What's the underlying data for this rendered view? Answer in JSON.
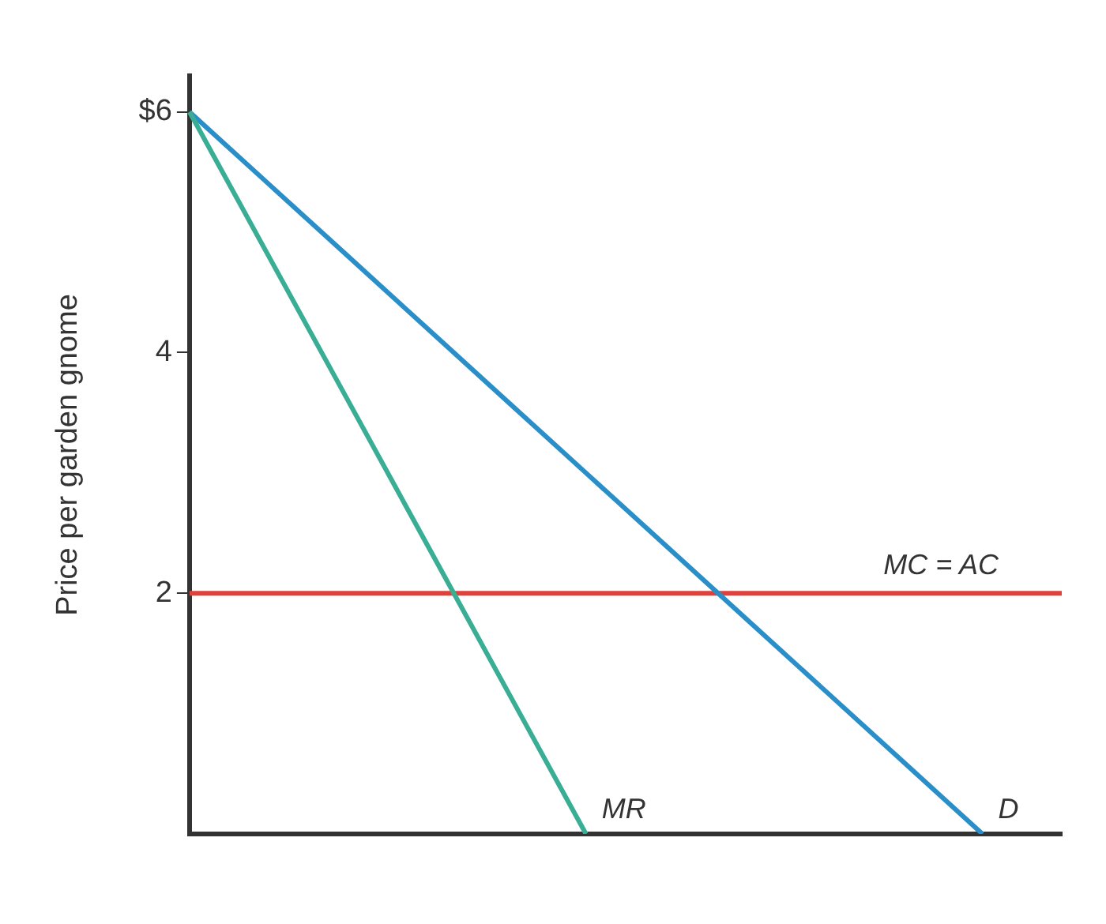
{
  "chart_data": {
    "type": "line",
    "ylabel": "Price per garden gnome",
    "categories": [
      null,
      null,
      null,
      null,
      null,
      null,
      null,
      null,
      null,
      null,
      null,
      null
    ],
    "ylim": [
      0,
      6.3
    ],
    "yticks": [
      2,
      4,
      {
        "value": 6,
        "label": "$6"
      }
    ],
    "tick_labels": "y",
    "grid": false,
    "legend": false,
    "marker": "none",
    "line_style": "solid",
    "series": [
      {
        "name": "MR",
        "color": "#3aae95",
        "values": [
          6,
          4.8,
          3.6,
          2.4,
          1.2,
          0,
          null,
          null,
          null,
          null,
          null,
          null
        ]
      },
      {
        "name": "D",
        "color": "#2a8fc9",
        "values": [
          6,
          5.4,
          4.8,
          4.2,
          3.6,
          3,
          2.4,
          1.8,
          1.2,
          0.6,
          0,
          null
        ]
      },
      {
        "name": "MC = AC",
        "color": "#e0413a",
        "values": [
          2,
          2,
          2,
          2,
          2,
          2,
          2,
          2,
          2,
          2,
          2,
          2
        ]
      }
    ]
  }
}
